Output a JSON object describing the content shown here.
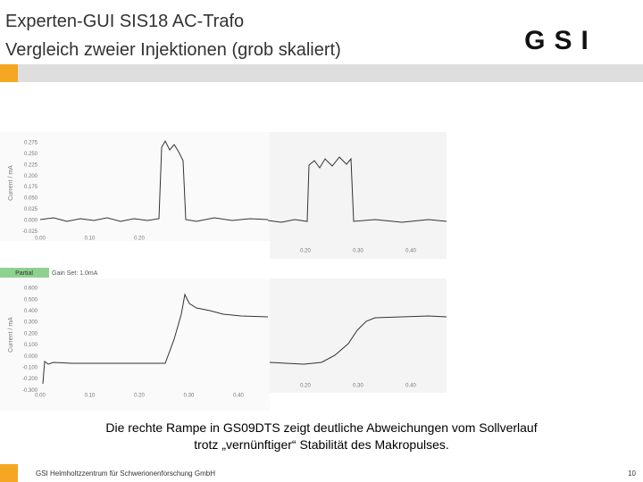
{
  "header": {
    "title_line1": "Experten-GUI SIS18 AC-Trafo",
    "title_line2": "Vergleich zweier Injektionen (grob skaliert)",
    "logo": "GSI"
  },
  "plots": {
    "y_axis_label": "Current / mA",
    "top_left": {
      "yticks": [
        "0.275",
        "0.250",
        "0.225",
        "0.200",
        "0.175",
        "0.050",
        "0.025",
        "0.000",
        "-0.025"
      ],
      "xticks": [
        "0.00",
        "0.10",
        "0.20"
      ]
    },
    "top_right": {
      "xticks": [
        "0.20",
        "0.30",
        "0.40"
      ]
    },
    "bottom_left": {
      "yticks": [
        "0.600",
        "0.500",
        "0.400",
        "0.300",
        "0.200",
        "0.100",
        "0.000",
        "-0.100",
        "-0.200",
        "-0.300"
      ],
      "xticks": [
        "0.00",
        "0.10",
        "0.20",
        "0.30",
        "0.40"
      ]
    },
    "bottom_right": {
      "xticks": [
        "0.20",
        "0.30",
        "0.40"
      ]
    }
  },
  "panel": {
    "partial": "Partial",
    "gain": "Gain Set: 1.0mA"
  },
  "caption": [
    "Die rechte Rampe in GS09DTS zeigt deutliche Abweichungen vom Sollverlauf",
    "trotz „vernünftiger“ Stabilität des Makropulses."
  ],
  "footer": {
    "org": "GSI Helmholtzzentrum für Schwerionenforschung GmbH",
    "page": "10"
  }
}
